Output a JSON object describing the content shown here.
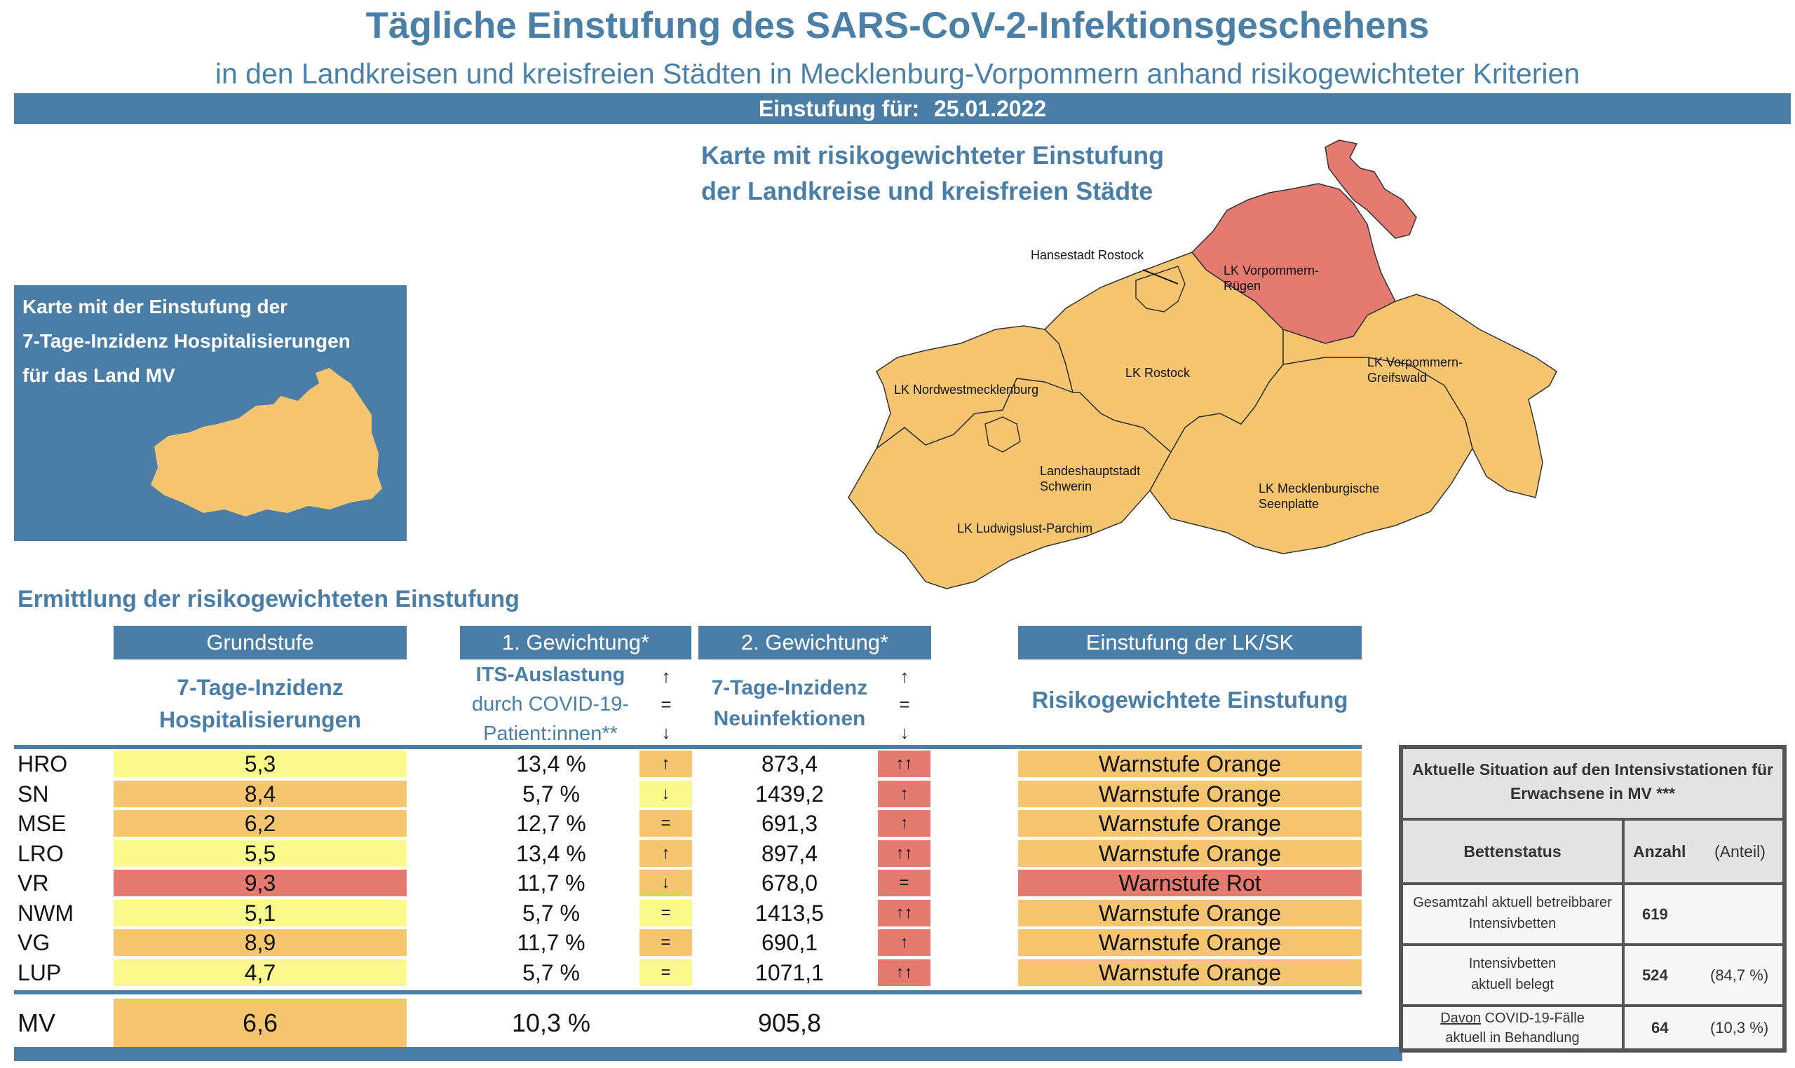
{
  "header": {
    "title": "Tägliche Einstufung des SARS-CoV-2-Infektionsgeschehens",
    "subtitle": "in den Landkreisen und kreisfreien Städten in Mecklenburg-Vorpommern anhand risikogewichteter Kriterien",
    "date_label": "Einstufung für:",
    "date_value": "25.01.2022"
  },
  "map": {
    "title_line1": "Karte mit risikogewichteter Einstufung",
    "title_line2": "der Landkreise und kreisfreien Städte",
    "labels": {
      "hro": "Hansestadt Rostock",
      "vr1": "LK Vorpommern-",
      "vr2": "Rügen",
      "nwm": "LK Nordwestmecklenburg",
      "lro": "LK Rostock",
      "vg1": "LK Vorpommern-",
      "vg2": "Greifswald",
      "sn1": "Landeshauptstadt",
      "sn2": "Schwerin",
      "mse1": "LK Mecklenburgische",
      "mse2": "Seenplatte",
      "lup": "LK Ludwigslust-Parchim"
    },
    "colors": {
      "orange": "#f6c56f",
      "red": "#e57b70"
    }
  },
  "hosp_map": {
    "line1": "Karte mit der Einstufung der",
    "line2": "7-Tage-Inzidenz Hospitalisierungen",
    "line3": "für das Land MV"
  },
  "section_title": "Ermittlung der risikogewichteten Einstufung",
  "table": {
    "headers": {
      "grundstufe": "Grundstufe",
      "gewichtung1": "1. Gewichtung*",
      "gewichtung2": "2. Gewichtung*",
      "einstufung": "Einstufung der LK/SK"
    },
    "subheaders": {
      "hosp_line1": "7-Tage-Inzidenz",
      "hosp_line2": "Hospitalisierungen",
      "its_line1": "ITS-Auslastung",
      "its_line2": "durch COVID-19-",
      "its_line3": "Patient:innen**",
      "inz_line1": "7-Tage-Inzidenz",
      "inz_line2": "Neuinfektionen",
      "risk": "Risikogewichtete Einstufung",
      "arrow_up": "↑",
      "arrow_eq": "=",
      "arrow_down": "↓"
    },
    "rows": [
      {
        "abbr": "HRO",
        "hosp": "5,3",
        "hosp_color": "yellow",
        "its": "13,4 %",
        "its_trend": "↑",
        "its_trend_color": "orange",
        "inz": "873,4",
        "inz_trend": "↑↑",
        "inz_trend_color": "red",
        "level": "Warnstufe Orange",
        "level_color": "orange"
      },
      {
        "abbr": "SN",
        "hosp": "8,4",
        "hosp_color": "orange",
        "its": "5,7 %",
        "its_trend": "↓",
        "its_trend_color": "yellow",
        "inz": "1439,2",
        "inz_trend": "↑",
        "inz_trend_color": "red",
        "level": "Warnstufe Orange",
        "level_color": "orange"
      },
      {
        "abbr": "MSE",
        "hosp": "6,2",
        "hosp_color": "orange",
        "its": "12,7 %",
        "its_trend": "=",
        "its_trend_color": "orange",
        "inz": "691,3",
        "inz_trend": "↑",
        "inz_trend_color": "red",
        "level": "Warnstufe Orange",
        "level_color": "orange"
      },
      {
        "abbr": "LRO",
        "hosp": "5,5",
        "hosp_color": "yellow",
        "its": "13,4 %",
        "its_trend": "↑",
        "its_trend_color": "orange",
        "inz": "897,4",
        "inz_trend": "↑↑",
        "inz_trend_color": "red",
        "level": "Warnstufe Orange",
        "level_color": "orange"
      },
      {
        "abbr": "VR",
        "hosp": "9,3",
        "hosp_color": "red",
        "its": "11,7 %",
        "its_trend": "↓",
        "its_trend_color": "orange",
        "inz": "678,0",
        "inz_trend": "=",
        "inz_trend_color": "red",
        "level": "Warnstufe Rot",
        "level_color": "red"
      },
      {
        "abbr": "NWM",
        "hosp": "5,1",
        "hosp_color": "yellow",
        "its": "5,7 %",
        "its_trend": "=",
        "its_trend_color": "yellow",
        "inz": "1413,5",
        "inz_trend": "↑↑",
        "inz_trend_color": "red",
        "level": "Warnstufe Orange",
        "level_color": "orange"
      },
      {
        "abbr": "VG",
        "hosp": "8,9",
        "hosp_color": "orange",
        "its": "11,7 %",
        "its_trend": "=",
        "its_trend_color": "orange",
        "inz": "690,1",
        "inz_trend": "↑",
        "inz_trend_color": "red",
        "level": "Warnstufe Orange",
        "level_color": "orange"
      },
      {
        "abbr": "LUP",
        "hosp": "4,7",
        "hosp_color": "yellow",
        "its": "5,7 %",
        "its_trend": "=",
        "its_trend_color": "yellow",
        "inz": "1071,1",
        "inz_trend": "↑↑",
        "inz_trend_color": "red",
        "level": "Warnstufe Orange",
        "level_color": "orange"
      }
    ],
    "total": {
      "abbr": "MV",
      "hosp": "6,6",
      "its": "10,3 %",
      "inz": "905,8"
    }
  },
  "icu": {
    "title_line1": "Aktuelle Situation auf den Intensivstationen für",
    "title_line2": "Erwachsene in MV ***",
    "col_status": "Bettenstatus",
    "col_count": "Anzahl",
    "col_share": "(Anteil)",
    "rows": [
      {
        "label_line1": "Gesamtzahl aktuell betreibbarer",
        "label_line2": "Intensivbetten",
        "count": "619",
        "share": ""
      },
      {
        "label_line1": "Intensivbetten",
        "label_line2": "aktuell belegt",
        "count": "524",
        "share": "(84,7 %)"
      },
      {
        "label_prefix": "Davon",
        "label_line1": " COVID-19-Fälle",
        "label_line2": "aktuell in Behandlung",
        "count": "64",
        "share": "(10,3 %)"
      }
    ]
  }
}
